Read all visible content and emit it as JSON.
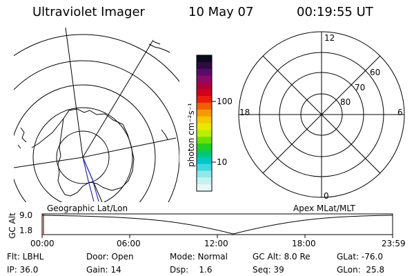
{
  "header": {
    "instrument": "Ultraviolet Imager",
    "date": "10 May 07",
    "time": "00:19:55 UT"
  },
  "colorbar": {
    "unit_label": "photon cm⁻²s⁻¹",
    "tick_labels": [
      "100",
      "10"
    ],
    "colors": [
      "#0a0a1e",
      "#300a40",
      "#5a0a6a",
      "#8a0a6a",
      "#b0003a",
      "#d0001a",
      "#e8200a",
      "#f06000",
      "#f59a00",
      "#f5c800",
      "#e8e800",
      "#b8f000",
      "#6ae000",
      "#20d020",
      "#00c878",
      "#00c8c8",
      "#40d8e0",
      "#90e8e8",
      "#c8f0f0",
      "#e8f8f8"
    ]
  },
  "polar_grid": {
    "mlt_labels": {
      "top": "12",
      "left": "18",
      "right": "6",
      "bottom": "0"
    },
    "mlat_labels": [
      "60",
      "70",
      "80"
    ]
  },
  "timeline": {
    "left_label": "Geographic Lat/Lon",
    "right_label": "Apex MLat/MLT",
    "axis_label": "GC Alt",
    "y_ticks": [
      "9.0",
      "1.8"
    ],
    "x_ticks": [
      "00:00",
      "06:00",
      "12:00",
      "18:00",
      "23:59"
    ]
  },
  "info": {
    "row1": [
      "Flt: LBHL",
      "Door: Open",
      "Mode: Normal",
      "GC Alt: 8.0 Re",
      "GLat: -76.0"
    ],
    "row2": [
      "IP: 36.0",
      "Gain: 14",
      "Dsp:    1.6",
      "Seq: 39",
      "GLon:  25.8"
    ]
  }
}
